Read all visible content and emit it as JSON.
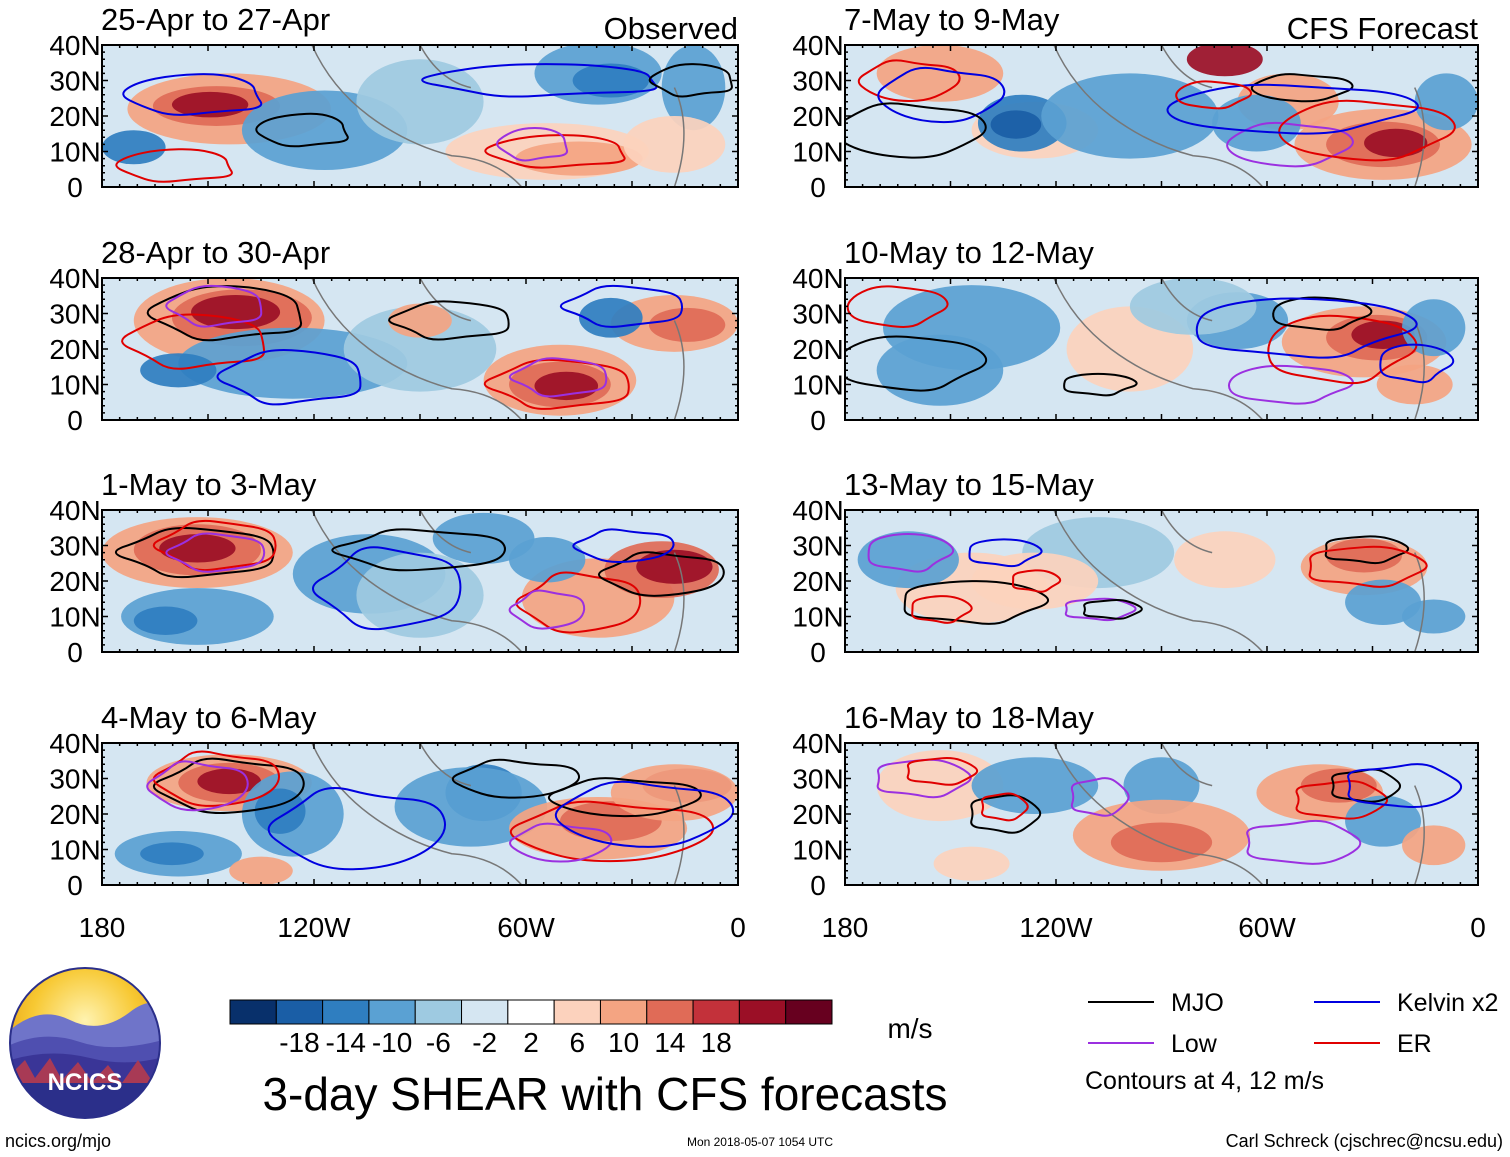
{
  "chart_data": {
    "type": "heatmap",
    "title": "3-day SHEAR with CFS forecasts",
    "units": "m/s",
    "columns": [
      {
        "label": "Observed",
        "panels": [
          "25-Apr to 27-Apr",
          "28-Apr to 30-Apr",
          "1-May to 3-May",
          "4-May to 6-May"
        ]
      },
      {
        "label": "CFS Forecast",
        "panels": [
          "7-May to 9-May",
          "10-May to 12-May",
          "13-May to 15-May",
          "16-May to 18-May"
        ]
      }
    ],
    "lat_ticks": [
      "40N",
      "30N",
      "20N",
      "10N",
      "0"
    ],
    "lat_values": [
      40,
      30,
      20,
      10,
      0
    ],
    "lon_ticks": [
      "180",
      "120W",
      "60W",
      "0"
    ],
    "lon_values": [
      -180,
      -120,
      -60,
      0
    ],
    "colorbar": {
      "levels": [
        "-18",
        "-14",
        "-10",
        "-6",
        "-2",
        "2",
        "6",
        "10",
        "14",
        "18"
      ],
      "colors": [
        "#08306b",
        "#1a5ea6",
        "#2f7ec0",
        "#5aa1d3",
        "#9ecae1",
        "#d5e6f2",
        "#ffffff",
        "#fcd2bd",
        "#f4a482",
        "#e06b57",
        "#c3313a",
        "#9b0f26",
        "#67001f"
      ]
    },
    "contours": [
      {
        "name": "MJO",
        "color": "#000000"
      },
      {
        "name": "Kelvin x2",
        "color": "#0000e0"
      },
      {
        "name": "Low",
        "color": "#9b30e0"
      },
      {
        "name": "ER",
        "color": "#e00000"
      }
    ],
    "contour_note": "Contours at 4, 12 m/s"
  },
  "logo": {
    "text": "NCICS"
  },
  "footer": {
    "url": "ncics.org/mjo",
    "timestamp": "Mon 2018-05-07 1054 UTC",
    "credit": "Carl Schreck (cjschrec@ncsu.edu)"
  }
}
